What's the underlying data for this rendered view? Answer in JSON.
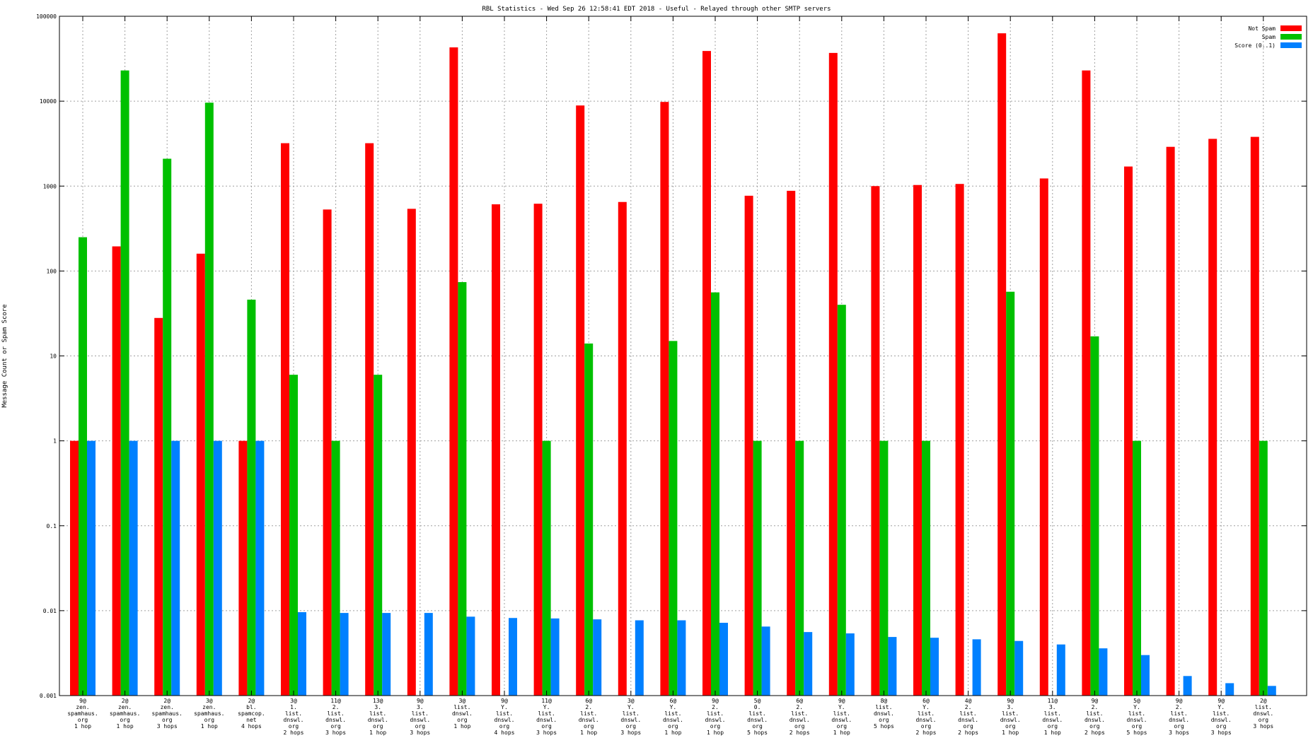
{
  "chart_data": {
    "type": "bar",
    "title": "RBL Statistics - Wed Sep 26 12:58:41 EDT 2018 - Useful - Relayed through other SMTP servers",
    "xlabel": "",
    "ylabel": "Message Count or Spam Score",
    "yscale": "log",
    "ylim": [
      0.001,
      100000
    ],
    "yticks": [
      "0.001",
      "0.01",
      "0.1",
      "1",
      "10",
      "100",
      "1000",
      "10000",
      "100000"
    ],
    "grid": true,
    "legend_position": "top-right",
    "categories": [
      "9@\nzen.\nspamhaus.\norg\n1 hop",
      "2@\nzen.\nspamhaus.\norg\n1 hop",
      "2@\nzen.\nspamhaus.\norg\n3 hops",
      "3@\nzen.\nspamhaus.\norg\n1 hop",
      "2@\nbl.\nspamcop.\nnet\n4 hops",
      "3@\n1.\nlist.\ndnswl.\norg\n2 hops",
      "11@\n2.\nlist.\ndnswl.\norg\n3 hops",
      "13@\n3.\nlist.\ndnswl.\norg\n1 hop",
      "9@\n3.\nlist.\ndnswl.\norg\n3 hops",
      "3@\nlist.\ndnswl.\norg\n1 hop",
      "9@\nY.\nlist.\ndnswl.\norg\n4 hops",
      "11@\nY.\nlist.\ndnswl.\norg\n3 hops",
      "6@\n2.\nlist.\ndnswl.\norg\n1 hop",
      "3@\nY.\nlist.\ndnswl.\norg\n3 hops",
      "6@\nY.\nlist.\ndnswl.\norg\n1 hop",
      "9@\n2.\nlist.\ndnswl.\norg\n1 hop",
      "5@\n0.\nlist.\ndnswl.\norg\n5 hops",
      "6@\n2.\nlist.\ndnswl.\norg\n2 hops",
      "9@\nY.\nlist.\ndnswl.\norg\n1 hop",
      "8@\nlist.\ndnswl.\norg\n5 hops",
      "6@\nY.\nlist.\ndnswl.\norg\n2 hops",
      "4@\n2.\nlist.\ndnswl.\norg\n2 hops",
      "9@\n3.\nlist.\ndnswl.\norg\n1 hop",
      "11@\n3.\nlist.\ndnswl.\norg\n1 hop",
      "9@\n2.\nlist.\ndnswl.\norg\n2 hops",
      "5@\nY.\nlist.\ndnswl.\norg\n5 hops",
      "9@\n2.\nlist.\ndnswl.\norg\n3 hops",
      "9@\nY.\nlist.\ndnswl.\norg\n3 hops",
      "2@\nlist.\ndnswl.\norg\n3 hops"
    ],
    "series": [
      {
        "name": "Not Spam",
        "color": "#ff0000",
        "values": [
          1,
          195,
          28,
          160,
          1,
          3200,
          530,
          3200,
          540,
          43000,
          610,
          620,
          8900,
          650,
          9800,
          39000,
          770,
          880,
          37000,
          1000,
          1030,
          1060,
          63000,
          1230,
          23000,
          1700,
          2900,
          3600,
          3800
        ]
      },
      {
        "name": "Spam",
        "color": "#00c000",
        "values": [
          250,
          23000,
          2100,
          9600,
          46,
          6,
          1,
          6,
          null,
          74,
          null,
          1,
          14,
          null,
          15,
          56,
          1,
          1,
          40,
          1,
          1,
          null,
          57,
          null,
          17,
          1,
          null,
          null,
          1
        ]
      },
      {
        "name": "Score (0..1)",
        "color": "#0080ff",
        "values": [
          1,
          1,
          1,
          1,
          1,
          0.0096,
          0.0094,
          0.0094,
          0.0094,
          0.0085,
          0.0082,
          0.0081,
          0.0079,
          0.0077,
          0.0077,
          0.0072,
          0.0065,
          0.0056,
          0.0054,
          0.0049,
          0.0048,
          0.0046,
          0.0044,
          0.004,
          0.0036,
          0.003,
          0.0017,
          0.0014,
          0.0013
        ]
      }
    ]
  }
}
